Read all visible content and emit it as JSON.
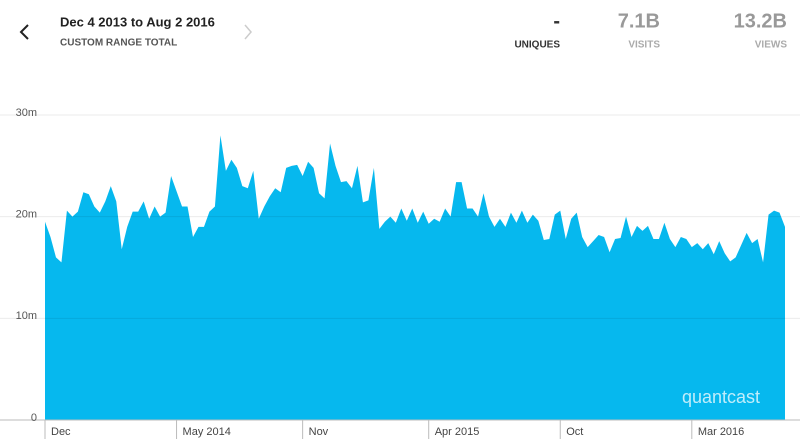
{
  "header": {
    "title": "Dec 4 2013 to Aug 2 2016",
    "subtitle": "CUSTOM RANGE TOTAL",
    "stats": [
      {
        "value": "-",
        "label": "UNIQUES"
      },
      {
        "value": "7.1B",
        "label": "VISITS"
      },
      {
        "value": "13.2B",
        "label": "VIEWS"
      }
    ]
  },
  "chart_data": {
    "type": "area",
    "color": "#06b8ee",
    "grid": true,
    "watermark": "quantcast",
    "ylim": [
      0,
      30
    ],
    "yticks": [
      {
        "value": 0,
        "label": "0"
      },
      {
        "value": 10,
        "label": "10m"
      },
      {
        "value": 20,
        "label": "20m"
      },
      {
        "value": 30,
        "label": "30m"
      }
    ],
    "categories": [
      "Dec",
      null,
      null,
      null,
      null,
      null,
      null,
      null,
      null,
      null,
      null,
      null,
      null,
      null,
      null,
      null,
      null,
      null,
      null,
      null,
      null,
      null,
      null,
      null,
      "May 2014",
      null,
      null,
      null,
      null,
      null,
      null,
      null,
      null,
      null,
      null,
      null,
      null,
      null,
      null,
      null,
      null,
      null,
      null,
      null,
      null,
      null,
      null,
      "Nov",
      null,
      null,
      null,
      null,
      null,
      null,
      null,
      null,
      null,
      null,
      null,
      null,
      null,
      null,
      null,
      null,
      null,
      null,
      null,
      null,
      null,
      null,
      "Apr 2015",
      null,
      null,
      null,
      null,
      null,
      null,
      null,
      null,
      null,
      null,
      null,
      null,
      null,
      null,
      null,
      null,
      null,
      null,
      null,
      null,
      null,
      null,
      null,
      "Oct",
      null,
      null,
      null,
      null,
      null,
      null,
      null,
      null,
      null,
      null,
      null,
      null,
      null,
      null,
      null,
      null,
      null,
      null,
      null,
      null,
      null,
      null,
      null,
      "Mar 2016",
      null,
      null,
      null,
      null,
      null,
      null,
      null,
      null,
      null,
      null,
      null,
      null,
      null,
      null,
      null,
      null,
      null
    ],
    "values": [
      19.5,
      18,
      16,
      15.5,
      20.6,
      20,
      20.5,
      22.4,
      22.2,
      21,
      20.4,
      21.5,
      23,
      21.5,
      16.8,
      19,
      20.5,
      20.5,
      21.5,
      19.8,
      21,
      20,
      20.4,
      24,
      22.5,
      21,
      21,
      18,
      19,
      19,
      20.5,
      21,
      28,
      24.5,
      25.6,
      24.8,
      23,
      22.8,
      24.5,
      19.8,
      21,
      22,
      22.8,
      22.4,
      24.8,
      25,
      25.1,
      24,
      25.4,
      24.8,
      22.3,
      21.8,
      27.2,
      25,
      23.4,
      23.5,
      22.8,
      25,
      21.4,
      21.6,
      24.8,
      18.8,
      19.5,
      20,
      19.4,
      20.8,
      19.6,
      20.8,
      19.4,
      20.5,
      19.3,
      19.8,
      19.5,
      20.8,
      20,
      23.4,
      23.4,
      20.8,
      20.8,
      20,
      22.3,
      20,
      19,
      19.8,
      19,
      20.4,
      19.4,
      20.6,
      19.4,
      20.2,
      19.6,
      17.7,
      17.8,
      20.2,
      20.6,
      17.8,
      19.8,
      20.4,
      18,
      17,
      17.6,
      18.2,
      18,
      16.5,
      17.8,
      17.9,
      20,
      18,
      19.1,
      18.6,
      19.1,
      17.8,
      17.8,
      19.4,
      17.8,
      17,
      18,
      17.8,
      17,
      17.4,
      16.8,
      17.4,
      16.3,
      17.6,
      16.4,
      15.6,
      16,
      17.2,
      18.4,
      17.4,
      17.8,
      15.5,
      20.2,
      20.6,
      20.4,
      19
    ]
  }
}
